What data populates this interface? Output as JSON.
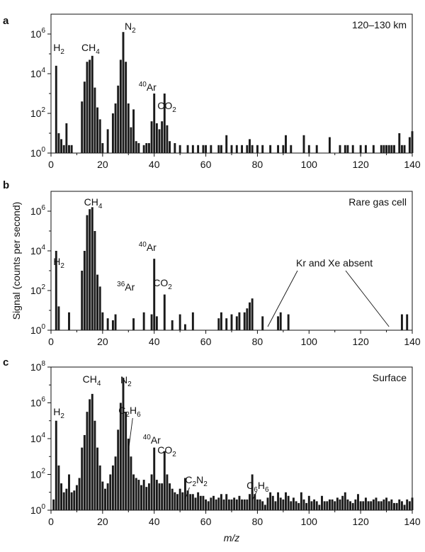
{
  "chart_data": [
    {
      "type": "bar",
      "panel_letter": "a",
      "corner_label": "120–130 km",
      "xlabel": "",
      "ylabel": "",
      "xlim": [
        0,
        140
      ],
      "ylim_log10": [
        0,
        7
      ],
      "scale": "log",
      "x_ticks": [
        "0",
        "20",
        "40",
        "60",
        "80",
        "100",
        "120",
        "140"
      ],
      "y_ticks": [
        {
          "base": "10",
          "exp": "0"
        },
        {
          "base": "10",
          "exp": "2"
        },
        {
          "base": "10",
          "exp": "4"
        },
        {
          "base": "10",
          "exp": "6"
        }
      ],
      "annotations": [
        {
          "base": "H",
          "sub": "2",
          "x": 2
        },
        {
          "base": "CH",
          "sub": "4",
          "x": 14
        },
        {
          "base": "N",
          "sub": "2",
          "x": 28
        },
        {
          "pre_sup": "40",
          "base": "Ar",
          "x": 40
        },
        {
          "base": "CO",
          "sub": "2",
          "x": 44
        }
      ],
      "mz": [
        2,
        3,
        4,
        5,
        6,
        7,
        8,
        12,
        13,
        14,
        15,
        16,
        17,
        18,
        19,
        20,
        22,
        24,
        25,
        26,
        27,
        28,
        29,
        30,
        31,
        32,
        33,
        34,
        36,
        37,
        38,
        39,
        40,
        41,
        42,
        43,
        44,
        45,
        46,
        48,
        50,
        53,
        55,
        57,
        59,
        60,
        62,
        65,
        66,
        68,
        70,
        72,
        74,
        76,
        77,
        78,
        80,
        82,
        85,
        88,
        90,
        91,
        93,
        98,
        100,
        103,
        108,
        112,
        114,
        115,
        117,
        120,
        122,
        125,
        128,
        129,
        130,
        131,
        132,
        133,
        135,
        136,
        137,
        139,
        140
      ],
      "log10_signal": [
        4.4,
        1.0,
        0.7,
        0.4,
        1.5,
        0.4,
        0.4,
        2.6,
        3.6,
        4.6,
        4.7,
        4.9,
        3.3,
        2.3,
        1.7,
        0.5,
        1.2,
        2.0,
        2.5,
        3.4,
        4.7,
        6.1,
        4.6,
        2.5,
        1.3,
        2.2,
        0.6,
        0.5,
        0.4,
        0.5,
        0.5,
        1.6,
        3.0,
        1.5,
        1.2,
        1.6,
        3.0,
        1.4,
        0.6,
        0.5,
        0.4,
        0.4,
        0.4,
        0.4,
        0.4,
        0.4,
        0.4,
        0.4,
        0.4,
        0.9,
        0.4,
        0.4,
        0.4,
        0.4,
        0.7,
        0.4,
        0.4,
        0.4,
        0.4,
        0.4,
        0.4,
        0.9,
        0.4,
        0.9,
        0.4,
        0.4,
        0.8,
        0.4,
        0.4,
        0.4,
        0.4,
        0.4,
        0.4,
        0.4,
        0.4,
        0.4,
        0.4,
        0.4,
        0.4,
        0.4,
        1.0,
        0.4,
        0.4,
        0.8,
        1.1
      ]
    },
    {
      "type": "bar",
      "panel_letter": "b",
      "corner_label": "Rare gas cell",
      "xlabel": "",
      "ylabel": "Signal (counts per second)",
      "xlim": [
        0,
        140
      ],
      "ylim_log10": [
        0,
        7
      ],
      "scale": "log",
      "x_ticks": [
        "0",
        "20",
        "40",
        "60",
        "80",
        "100",
        "120",
        "140"
      ],
      "y_ticks": [
        {
          "base": "10",
          "exp": "0"
        },
        {
          "base": "10",
          "exp": "2"
        },
        {
          "base": "10",
          "exp": "4"
        },
        {
          "base": "10",
          "exp": "6"
        }
      ],
      "annotations": [
        {
          "base": "H",
          "sub": "2",
          "x": 2
        },
        {
          "base": "CH",
          "sub": "4",
          "x": 15
        },
        {
          "pre_sup": "36",
          "base": "Ar",
          "x": 36
        },
        {
          "pre_sup": "40",
          "base": "Ar",
          "x": 40
        },
        {
          "base": "CO",
          "sub": "2",
          "x": 44
        },
        {
          "text": "Kr and Xe absent",
          "targets": [
            84,
            131
          ]
        }
      ],
      "mz": [
        2,
        3,
        7,
        12,
        13,
        14,
        15,
        16,
        17,
        18,
        19,
        20,
        22,
        24,
        25,
        32,
        36,
        39,
        40,
        41,
        44,
        47,
        50,
        52,
        55,
        65,
        66,
        68,
        70,
        72,
        73,
        75,
        76,
        77,
        78,
        82,
        88,
        89,
        92,
        136,
        138
      ],
      "log10_signal": [
        4.0,
        1.2,
        0.9,
        3.0,
        4.0,
        5.8,
        6.1,
        6.2,
        5.0,
        2.8,
        2.2,
        0.9,
        0.6,
        0.5,
        0.8,
        0.6,
        0.9,
        0.8,
        3.6,
        0.7,
        1.8,
        0.5,
        0.8,
        0.3,
        0.9,
        0.6,
        0.9,
        0.6,
        0.8,
        0.7,
        0.9,
        0.9,
        1.1,
        1.4,
        1.6,
        0.7,
        0.7,
        0.9,
        0.8,
        0.8,
        0.8
      ]
    },
    {
      "type": "bar",
      "panel_letter": "c",
      "corner_label": "Surface",
      "xlabel_italic": "m/z",
      "ylabel": "",
      "xlim": [
        0,
        140
      ],
      "ylim_log10": [
        0,
        8
      ],
      "scale": "log",
      "x_ticks": [
        "0",
        "20",
        "40",
        "60",
        "80",
        "100",
        "120",
        "140"
      ],
      "y_ticks": [
        {
          "base": "10",
          "exp": "0"
        },
        {
          "base": "10",
          "exp": "2"
        },
        {
          "base": "10",
          "exp": "4"
        },
        {
          "base": "10",
          "exp": "6"
        },
        {
          "base": "10",
          "exp": "8"
        }
      ],
      "annotations": [
        {
          "base": "H",
          "sub": "2",
          "x": 2
        },
        {
          "base": "CH",
          "sub": "4",
          "x": 15
        },
        {
          "base": "N",
          "sub": "2",
          "x": 28
        },
        {
          "base": "C",
          "sub": "2",
          "base2": "H",
          "sub2": "6",
          "x": 30
        },
        {
          "pre_sup": "40",
          "base": "Ar",
          "x": 40
        },
        {
          "base": "CO",
          "sub": "2",
          "x": 44
        },
        {
          "base": "C",
          "sub": "2",
          "base2": "N",
          "sub2": "2",
          "x": 52
        },
        {
          "base": "C",
          "sub": "6",
          "base2": "H",
          "sub2": "6",
          "x": 78
        }
      ],
      "mz": [
        1,
        2,
        3,
        4,
        5,
        6,
        7,
        8,
        9,
        10,
        11,
        12,
        13,
        14,
        15,
        16,
        17,
        18,
        19,
        20,
        21,
        22,
        23,
        24,
        25,
        26,
        27,
        28,
        29,
        30,
        31,
        32,
        33,
        34,
        35,
        36,
        37,
        38,
        39,
        40,
        41,
        42,
        43,
        44,
        45,
        46,
        47,
        48,
        49,
        50,
        51,
        52,
        53,
        54,
        55,
        56,
        57,
        58,
        59,
        60,
        61,
        62,
        63,
        64,
        65,
        66,
        67,
        68,
        69,
        70,
        71,
        72,
        73,
        74,
        75,
        76,
        77,
        78,
        79,
        80,
        81,
        82,
        83,
        84,
        85,
        86,
        87,
        88,
        89,
        90,
        91,
        92,
        93,
        94,
        95,
        96,
        97,
        98,
        99,
        100,
        101,
        102,
        103,
        104,
        105,
        106,
        107,
        108,
        109,
        110,
        111,
        112,
        113,
        114,
        115,
        116,
        117,
        118,
        119,
        120,
        121,
        122,
        123,
        124,
        125,
        126,
        127,
        128,
        129,
        130,
        131,
        132,
        133,
        134,
        135,
        136,
        137,
        138,
        139,
        140
      ],
      "log10_signal": [
        0.6,
        5.0,
        2.5,
        1.5,
        1.0,
        1.2,
        2.0,
        1.0,
        1.1,
        1.4,
        1.8,
        3.5,
        4.2,
        5.5,
        6.2,
        6.5,
        5.0,
        3.5,
        2.5,
        1.6,
        1.2,
        1.5,
        2.0,
        2.5,
        3.0,
        4.5,
        6.0,
        7.4,
        5.5,
        4.0,
        3.0,
        2.0,
        1.8,
        1.7,
        1.4,
        1.7,
        1.3,
        1.5,
        2.0,
        3.5,
        1.7,
        1.5,
        1.5,
        3.3,
        2.0,
        1.5,
        1.2,
        1.0,
        0.9,
        1.2,
        1.0,
        1.8,
        1.1,
        0.9,
        0.9,
        0.7,
        1.0,
        0.8,
        0.8,
        0.6,
        0.5,
        0.7,
        0.8,
        0.6,
        0.7,
        0.9,
        0.6,
        0.9,
        0.6,
        0.6,
        0.7,
        0.6,
        0.8,
        0.6,
        0.6,
        0.6,
        0.9,
        2.0,
        0.9,
        0.6,
        0.6,
        0.5,
        0.3,
        0.7,
        1.0,
        0.8,
        0.5,
        1.0,
        0.7,
        0.6,
        1.0,
        0.8,
        0.5,
        0.7,
        0.5,
        0.4,
        1.0,
        0.6,
        0.4,
        0.8,
        0.5,
        0.6,
        0.5,
        0.3,
        0.8,
        0.5,
        0.5,
        0.6,
        0.6,
        0.5,
        0.7,
        0.6,
        0.8,
        1.0,
        0.6,
        0.5,
        0.4,
        0.6,
        0.9,
        0.5,
        0.5,
        0.7,
        0.5,
        0.5,
        0.6,
        0.7,
        0.5,
        0.5,
        0.6,
        0.7,
        0.5,
        0.6,
        0.4,
        0.4,
        0.6,
        0.5,
        0.3,
        0.6,
        0.5,
        0.7
      ]
    }
  ]
}
